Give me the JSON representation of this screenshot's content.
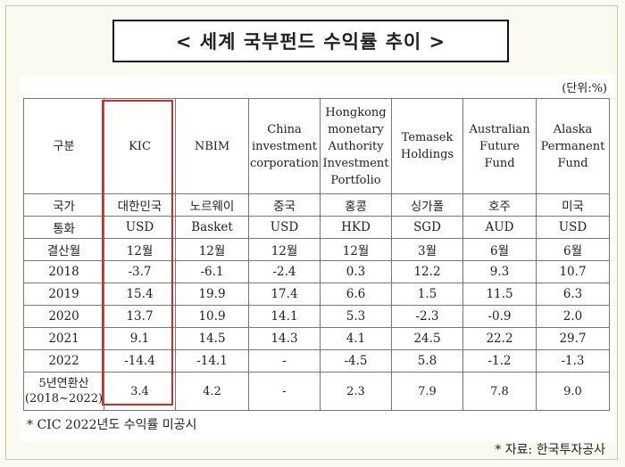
{
  "title": "< 세계 국부펀드 수익률 추이 >",
  "unit": "(단위:%)",
  "headers": [
    "구분",
    "KIC",
    "NBIM",
    "China investment corporation",
    "Hongkong monetary Authority Investment Portfolio",
    "Temasek Holdings",
    "Australian Future Fund",
    "Alaska Permanent Fund"
  ],
  "rows": [
    [
      "국가",
      "대한민국",
      "노르웨이",
      "중국",
      "홍콩",
      "싱가폴",
      "호주",
      "미국"
    ],
    [
      "통화",
      "USD",
      "Basket",
      "USD",
      "HKD",
      "SGD",
      "AUD",
      "USD"
    ],
    [
      "결산월",
      "12월",
      "12월",
      "12월",
      "12월",
      "3월",
      "6월",
      "6월"
    ],
    [
      "2018",
      "-3.7",
      "-6.1",
      "-2.4",
      "0.3",
      "12.2",
      "9.3",
      "10.7"
    ],
    [
      "2019",
      "15.4",
      "19.9",
      "17.4",
      "6.6",
      "1.5",
      "11.5",
      "6.3"
    ],
    [
      "2020",
      "13.7",
      "10.9",
      "14.1",
      "5.3",
      "-2.3",
      "-0.9",
      "2.0"
    ],
    [
      "2021",
      "9.1",
      "14.5",
      "14.3",
      "4.1",
      "24.5",
      "22.2",
      "29.7"
    ],
    [
      "2022",
      "-14.4",
      "-14.1",
      "-",
      "-4.5",
      "5.8",
      "-1.2",
      "-1.3"
    ]
  ],
  "avg_row": {
    "label_line1": "5년연환산",
    "label_line2": "(2018~2022)",
    "values": [
      "3.4",
      "4.2",
      "-",
      "2.3",
      "7.9",
      "7.8",
      "9.0"
    ]
  },
  "note": "* CIC 2022년도 수익률 미공시",
  "source": "* 자료: 한국투자공사"
}
